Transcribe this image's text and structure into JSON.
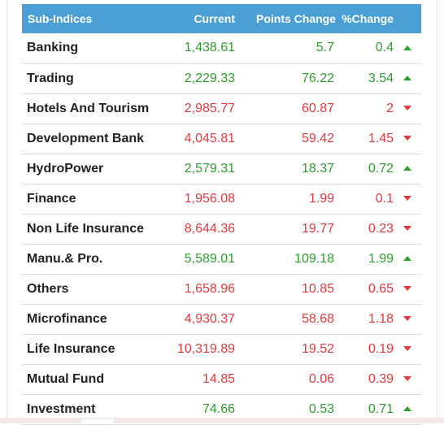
{
  "header": {
    "name": "Sub-Indices",
    "current": "Current",
    "points_change": "Points Change",
    "pct_change": "%Change"
  },
  "rows": [
    {
      "name": "Banking",
      "current": "1,438.61",
      "points": "5.7",
      "pct": "0.4",
      "dir": "up"
    },
    {
      "name": "Trading",
      "current": "2,229.33",
      "points": "76.22",
      "pct": "3.54",
      "dir": "up"
    },
    {
      "name": "Hotels And Tourism",
      "current": "2,985.77",
      "points": "60.87",
      "pct": "2",
      "dir": "down"
    },
    {
      "name": "Development Bank",
      "current": "4,045.81",
      "points": "59.42",
      "pct": "1.45",
      "dir": "down"
    },
    {
      "name": "HydroPower",
      "current": "2,579.31",
      "points": "18.37",
      "pct": "0.72",
      "dir": "up"
    },
    {
      "name": "Finance",
      "current": "1,956.08",
      "points": "1.99",
      "pct": "0.1",
      "dir": "down"
    },
    {
      "name": "Non Life Insurance",
      "current": "8,644.36",
      "points": "19.77",
      "pct": "0.23",
      "dir": "down"
    },
    {
      "name": "Manu.& Pro.",
      "current": "5,589.01",
      "points": "109.18",
      "pct": "1.99",
      "dir": "up"
    },
    {
      "name": "Others",
      "current": "1,658.96",
      "points": "10.85",
      "pct": "0.65",
      "dir": "down"
    },
    {
      "name": "Microfinance",
      "current": "4,930.37",
      "points": "58.68",
      "pct": "1.18",
      "dir": "down"
    },
    {
      "name": "Life Insurance",
      "current": "10,319.89",
      "points": "19.52",
      "pct": "0.19",
      "dir": "down"
    },
    {
      "name": "Mutual Fund",
      "current": "14.85",
      "points": "0.06",
      "pct": "0.39",
      "dir": "down"
    },
    {
      "name": "Investment",
      "current": "74.66",
      "points": "0.53",
      "pct": "0.71",
      "dir": "up"
    }
  ],
  "colors": {
    "header_bg": "#4a9fd4",
    "up": "#2d9e2d",
    "down": "#e0393e"
  },
  "icons": {
    "up": "triangle-up-icon",
    "down": "triangle-down-icon"
  }
}
